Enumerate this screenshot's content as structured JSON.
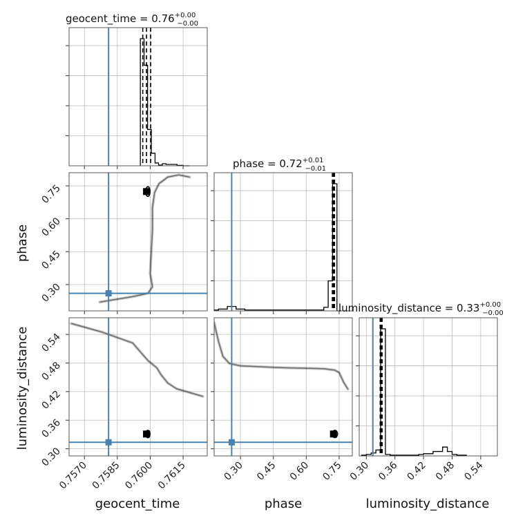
{
  "chart_data": {
    "type": "corner",
    "parameters": [
      "geocent_time",
      "phase",
      "luminosity_distance"
    ],
    "truths": {
      "geocent_time": 0.7581,
      "phase": 0.26,
      "luminosity_distance": 0.3136
    },
    "titles": [
      {
        "param": "geocent_time",
        "text": "geocent_time = 0.76",
        "sup": "+0.00",
        "sub": "−0.00"
      },
      {
        "param": "phase",
        "text": "phase = 0.72",
        "sup": "+0.01",
        "sub": "−0.01"
      },
      {
        "param": "luminosity_distance",
        "text": "luminosity_distance = 0.33",
        "sup": "+0.00",
        "sub": "−0.00"
      }
    ],
    "axis_labels": {
      "x": [
        "geocent_time",
        "phase",
        "luminosity_distance"
      ],
      "y": [
        "phase",
        "luminosity_distance"
      ]
    },
    "ranges": {
      "geocent_time": [
        0.7563,
        0.7626
      ],
      "phase": [
        0.18,
        0.81
      ],
      "luminosity_distance": [
        0.285,
        0.575
      ]
    },
    "ticks": {
      "geocent_time": {
        "values": [
          0.757,
          0.7585,
          0.76,
          0.7615
        ],
        "labels": [
          "0.7570",
          "0.7585",
          "0.7600",
          "0.7615"
        ]
      },
      "phase": {
        "values": [
          0.3,
          0.45,
          0.6,
          0.75
        ],
        "labels": [
          "0.30",
          "0.45",
          "0.60",
          "0.75"
        ]
      },
      "luminosity_distance": {
        "values": [
          0.3,
          0.36,
          0.42,
          0.48,
          0.54
        ],
        "labels": [
          "0.30",
          "0.36",
          "0.42",
          "0.48",
          "0.54"
        ]
      }
    },
    "quantiles": {
      "geocent_time": [
        0.75966,
        0.75983,
        0.76002
      ],
      "phase": [
        0.719,
        0.724,
        0.729
      ],
      "luminosity_distance": [
        0.329,
        0.331,
        0.333
      ]
    },
    "histograms": {
      "geocent_time": {
        "edges": [
          0.75955,
          0.75972,
          0.75988,
          0.76005,
          0.76022,
          0.76038,
          0.76055,
          0.76072,
          0.76088,
          0.76105,
          0.76122,
          0.76138,
          0.7615,
          0.7618
        ],
        "counts": [
          91,
          72,
          26,
          9,
          2,
          0.5,
          1.5,
          1,
          1,
          1,
          0.3,
          0.3,
          0
        ]
      },
      "phase": {
        "edges": [
          0.18,
          0.2,
          0.24,
          0.28,
          0.32,
          0.36,
          0.4,
          0.44,
          0.48,
          0.52,
          0.56,
          0.6,
          0.64,
          0.68,
          0.7,
          0.72,
          0.74,
          0.76
        ],
        "counts": [
          0.5,
          1,
          2.5,
          1,
          0.5,
          0.5,
          0.5,
          0.5,
          0.5,
          0.5,
          0.5,
          0.5,
          0.5,
          2,
          17,
          72,
          0
        ]
      },
      "luminosity_distance": {
        "edges": [
          0.29,
          0.3,
          0.31,
          0.32,
          0.33,
          0.34,
          0.35,
          0.38,
          0.41,
          0.42,
          0.44,
          0.46,
          0.47,
          0.48,
          0.49,
          0.5,
          0.51
        ],
        "counts": [
          0.5,
          1,
          2,
          4,
          86,
          1,
          0.5,
          0.5,
          1,
          1.5,
          3,
          6,
          3,
          1,
          0.5,
          0.5
        ]
      }
    },
    "contours": [
      {
        "x": "geocent_time",
        "y": "phase",
        "center": [
          0.75983,
          0.724
        ],
        "radius": [
          8e-05,
          0.02
        ]
      },
      {
        "x": "geocent_time",
        "y": "luminosity_distance",
        "center": [
          0.75983,
          0.331
        ],
        "radius": [
          8e-05,
          0.007
        ]
      },
      {
        "x": "phase",
        "y": "luminosity_distance",
        "center": [
          0.724,
          0.331
        ],
        "radius": [
          0.01,
          0.007
        ]
      }
    ],
    "sample_tracks": {
      "geocent_time_phase": [
        [
          0.7577,
          0.22
        ],
        [
          0.7592,
          0.245
        ],
        [
          0.7599,
          0.26
        ],
        [
          0.7601,
          0.29
        ],
        [
          0.76,
          0.35
        ],
        [
          0.76005,
          0.45
        ],
        [
          0.7601,
          0.55
        ],
        [
          0.7601,
          0.65
        ],
        [
          0.7602,
          0.72
        ],
        [
          0.7604,
          0.76
        ],
        [
          0.7608,
          0.79
        ],
        [
          0.7613,
          0.8
        ],
        [
          0.7618,
          0.79
        ]
      ],
      "geocent_time_luminosity_distance": [
        [
          0.7564,
          0.563
        ],
        [
          0.7578,
          0.545
        ],
        [
          0.7592,
          0.522
        ],
        [
          0.7599,
          0.485
        ],
        [
          0.7603,
          0.47
        ],
        [
          0.7605,
          0.455
        ],
        [
          0.7608,
          0.438
        ],
        [
          0.7612,
          0.426
        ],
        [
          0.7618,
          0.418
        ],
        [
          0.7624,
          0.41
        ]
      ],
      "phase_luminosity_distance": [
        [
          0.18,
          0.565
        ],
        [
          0.2,
          0.525
        ],
        [
          0.22,
          0.494
        ],
        [
          0.25,
          0.479
        ],
        [
          0.3,
          0.474
        ],
        [
          0.4,
          0.472
        ],
        [
          0.5,
          0.47
        ],
        [
          0.6,
          0.469
        ],
        [
          0.68,
          0.468
        ],
        [
          0.73,
          0.465
        ],
        [
          0.75,
          0.46
        ],
        [
          0.77,
          0.44
        ],
        [
          0.79,
          0.425
        ]
      ]
    },
    "grid": true,
    "colors": {
      "truth": "#4682b4",
      "hist": "#000000",
      "grid": "#bdbdbd"
    }
  }
}
